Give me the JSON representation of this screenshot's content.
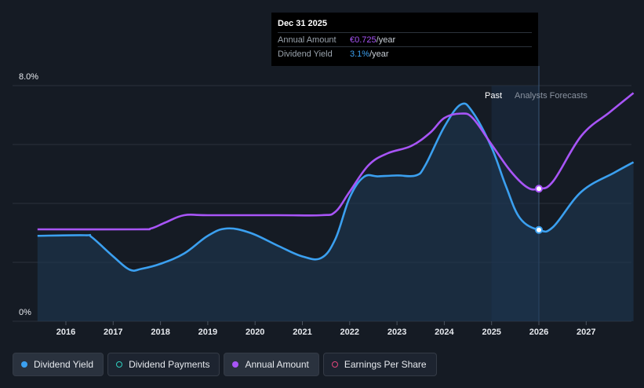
{
  "chart_data": {
    "type": "line",
    "y_axis": {
      "min_label": "0%",
      "max_label": "8.0%",
      "ylim": [
        0,
        8.0
      ]
    },
    "x_ticks": [
      "2016",
      "2017",
      "2018",
      "2019",
      "2020",
      "2021",
      "2022",
      "2023",
      "2024",
      "2025",
      "2026",
      "2027"
    ],
    "regions": {
      "past_label": "Past",
      "forecast_label": "Analysts Forecasts"
    },
    "series": [
      {
        "name": "Dividend Yield",
        "color": "#3ba0f0",
        "filled": true,
        "points": [
          [
            2015.4,
            2.9
          ],
          [
            2016.4,
            2.92
          ],
          [
            2016.55,
            2.85
          ],
          [
            2017.0,
            2.2
          ],
          [
            2017.35,
            1.75
          ],
          [
            2017.6,
            1.78
          ],
          [
            2018.0,
            1.95
          ],
          [
            2018.5,
            2.3
          ],
          [
            2019.0,
            2.9
          ],
          [
            2019.4,
            3.15
          ],
          [
            2019.9,
            3.0
          ],
          [
            2020.5,
            2.55
          ],
          [
            2021.0,
            2.2
          ],
          [
            2021.4,
            2.15
          ],
          [
            2021.7,
            2.8
          ],
          [
            2022.0,
            4.2
          ],
          [
            2022.3,
            4.9
          ],
          [
            2022.6,
            4.92
          ],
          [
            2023.0,
            4.95
          ],
          [
            2023.4,
            4.95
          ],
          [
            2023.6,
            5.3
          ],
          [
            2024.0,
            6.6
          ],
          [
            2024.35,
            7.36
          ],
          [
            2024.6,
            7.1
          ],
          [
            2025.0,
            5.9
          ],
          [
            2025.3,
            4.6
          ],
          [
            2025.6,
            3.5
          ],
          [
            2026.0,
            3.1
          ],
          [
            2026.3,
            3.2
          ],
          [
            2026.9,
            4.4
          ],
          [
            2027.6,
            5.05
          ],
          [
            2028.0,
            5.4
          ]
        ]
      },
      {
        "name": "Annual Amount",
        "color": "#a855f7",
        "filled": false,
        "points": [
          [
            2015.4,
            3.12
          ],
          [
            2017.5,
            3.12
          ],
          [
            2017.8,
            3.15
          ],
          [
            2018.1,
            3.35
          ],
          [
            2018.5,
            3.6
          ],
          [
            2019.0,
            3.6
          ],
          [
            2020.5,
            3.6
          ],
          [
            2021.4,
            3.6
          ],
          [
            2021.7,
            3.72
          ],
          [
            2022.0,
            4.4
          ],
          [
            2022.4,
            5.3
          ],
          [
            2022.8,
            5.7
          ],
          [
            2023.3,
            5.95
          ],
          [
            2023.7,
            6.4
          ],
          [
            2024.0,
            6.9
          ],
          [
            2024.35,
            7.05
          ],
          [
            2024.6,
            6.9
          ],
          [
            2025.0,
            6.0
          ],
          [
            2025.4,
            5.1
          ],
          [
            2025.75,
            4.55
          ],
          [
            2026.0,
            4.5
          ],
          [
            2026.3,
            4.75
          ],
          [
            2026.9,
            6.3
          ],
          [
            2027.5,
            7.1
          ],
          [
            2028.0,
            7.75
          ]
        ]
      }
    ],
    "highlight": {
      "x": 2026.0,
      "yield_y": 3.1,
      "amount_y": 4.5
    }
  },
  "tooltip": {
    "title": "Dec 31 2025",
    "rows": [
      {
        "label": "Annual Amount",
        "value": "€0.725",
        "unit": "/year"
      },
      {
        "label": "Dividend Yield",
        "value": "3.1%",
        "unit": "/year"
      }
    ]
  },
  "legend": [
    {
      "label": "Dividend Yield",
      "color": "#3ba0f0",
      "style": "filled",
      "active": true
    },
    {
      "label": "Dividend Payments",
      "color": "#2fd0c0",
      "style": "hollow",
      "active": false
    },
    {
      "label": "Annual Amount",
      "color": "#a855f7",
      "style": "filled",
      "active": true
    },
    {
      "label": "Earnings Per Share",
      "color": "#e0457b",
      "style": "hollow",
      "active": false
    }
  ],
  "colors": {
    "background": "#151b24",
    "grid": "#2b323d",
    "forecast_band": "#1b2e45"
  }
}
